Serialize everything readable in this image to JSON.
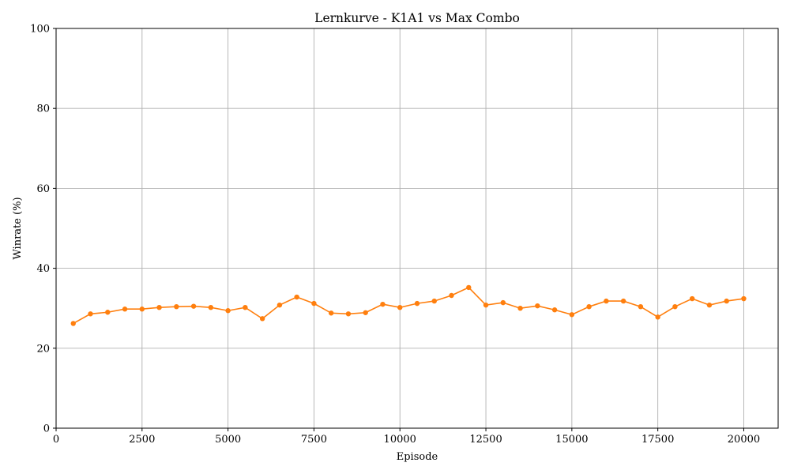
{
  "chart_data": {
    "type": "line",
    "title": "Lernkurve - K1A1 vs Max Combo",
    "xlabel": "Episode",
    "ylabel": "Winrate (%)",
    "xlim": [
      0,
      21000
    ],
    "ylim": [
      0,
      100
    ],
    "xticks": [
      0,
      2500,
      5000,
      7500,
      10000,
      12500,
      15000,
      17500,
      20000
    ],
    "yticks": [
      0,
      20,
      40,
      60,
      80,
      100
    ],
    "grid": true,
    "series": [
      {
        "color": "#ff7f0e",
        "x": [
          500,
          1000,
          1500,
          2000,
          2500,
          3000,
          3500,
          4000,
          4500,
          5000,
          5500,
          6000,
          6500,
          7000,
          7500,
          8000,
          8500,
          9000,
          9500,
          10000,
          10500,
          11000,
          11500,
          12000,
          12500,
          13000,
          13500,
          14000,
          14500,
          15000,
          15500,
          16000,
          16500,
          17000,
          17500,
          18000,
          18500,
          19000,
          19500,
          20000
        ],
        "y": [
          26.2,
          28.6,
          29.0,
          29.8,
          29.8,
          30.2,
          30.4,
          30.5,
          30.2,
          29.4,
          30.2,
          27.4,
          30.8,
          32.8,
          31.2,
          28.8,
          28.6,
          28.9,
          31.0,
          30.2,
          31.2,
          31.8,
          33.2,
          35.2,
          30.8,
          31.4,
          30.0,
          30.6,
          29.6,
          28.4,
          30.4,
          31.8,
          31.8,
          30.4,
          27.8,
          30.4,
          32.4,
          30.8,
          31.8,
          32.4
        ]
      }
    ]
  }
}
